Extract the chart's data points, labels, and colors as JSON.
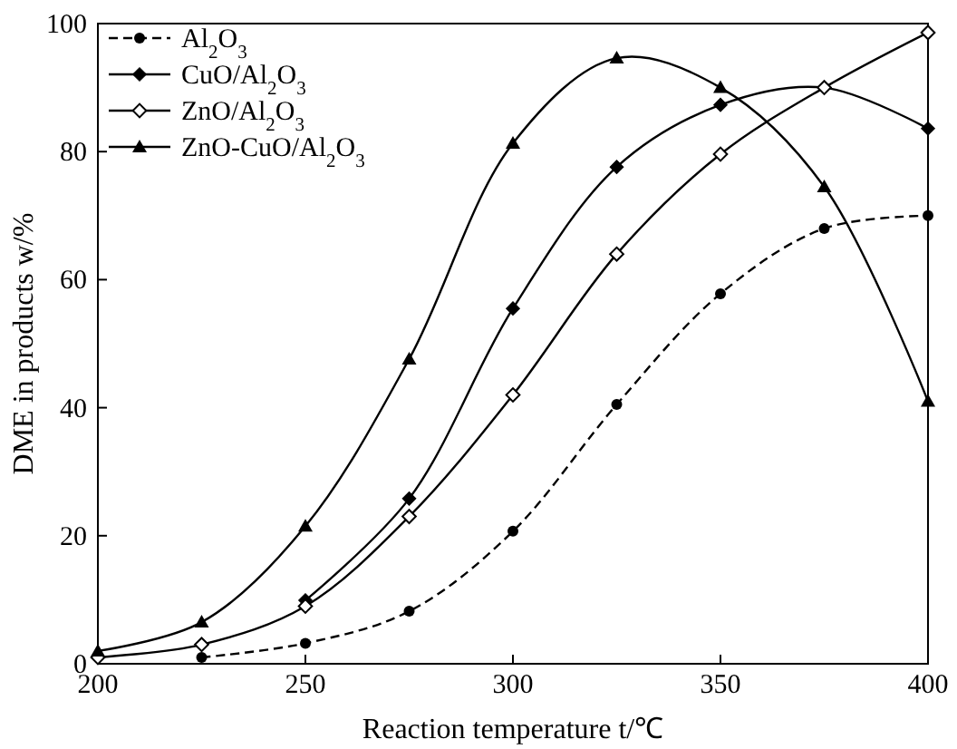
{
  "chart_data": {
    "type": "line",
    "xlabel": "Reaction temperature t/℃",
    "ylabel": "DME in products w/%",
    "x": [
      200,
      225,
      250,
      275,
      300,
      325,
      350,
      375,
      400
    ],
    "xlim": [
      200,
      400
    ],
    "xticks": [
      200,
      250,
      300,
      350,
      400
    ],
    "ylim": [
      0,
      100
    ],
    "yticks": [
      0,
      20,
      40,
      60,
      80,
      100
    ],
    "grid": false,
    "legend": "top left",
    "series": [
      {
        "name": "Al$_{2}$O$_{3}$",
        "color": "#000000",
        "marker": "circle",
        "line_style": "dashed",
        "values": [
          null,
          1,
          3.2,
          8.2,
          20.7,
          40.5,
          57.8,
          68,
          70
        ]
      },
      {
        "name": "CuO/Al$_{2}$O$_{3}$",
        "color": "#000000",
        "marker": "diamond",
        "line_style": "solid",
        "values": [
          null,
          null,
          9.9,
          25.8,
          55.5,
          77.6,
          87.3,
          90,
          83.6
        ]
      },
      {
        "name": "ZnO/Al$_{2}$O$_{3}$",
        "color": "#000000",
        "marker": "diamond-open",
        "line_style": "solid",
        "values": [
          1,
          3,
          9,
          23,
          42,
          64,
          79.6,
          90,
          98.6
        ]
      },
      {
        "name": "ZnO-CuO/Al$_{2}$O$_{3}$",
        "color": "#000000",
        "marker": "triangle",
        "line_style": "solid",
        "values": [
          2,
          6.5,
          21.5,
          47.6,
          81.3,
          94.6,
          90,
          74.5,
          41
        ]
      }
    ]
  }
}
